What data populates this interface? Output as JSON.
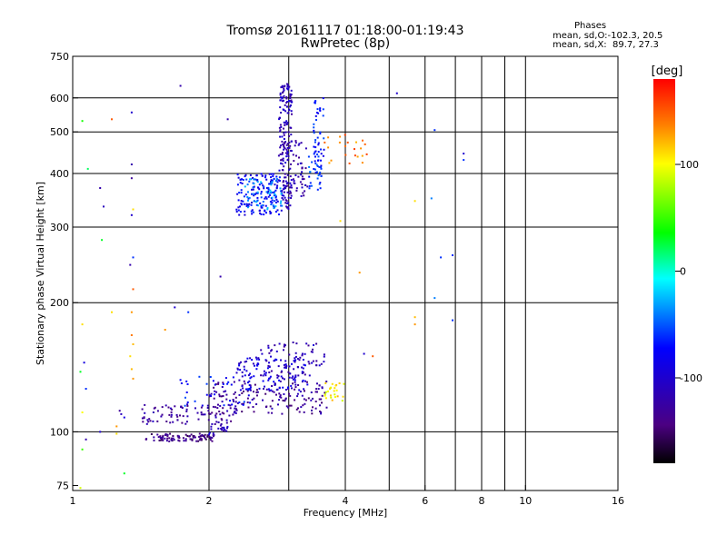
{
  "header": {
    "title_line1": "Tromsø 20161117 01:18:00-01:19:43",
    "title_line2": "RwPretec (8p)"
  },
  "phases": {
    "heading": "Phases",
    "line1": "mean, sd,O:-102.3, 20.5",
    "line2": "mean, sd,X:  89.7, 27.3"
  },
  "chart_data": {
    "type": "scatter",
    "title": "Tromsø 20161117 01:18:00-01:19:43",
    "subtitle": "RwPretec (8p)",
    "xlabel": "Frequency [MHz]",
    "ylabel": "Stationary phase Virtual Height [km]",
    "xscale": "log",
    "yscale": "log",
    "xlim": [
      1,
      16
    ],
    "ylim": [
      73,
      750
    ],
    "x_ticks": [
      "1",
      "2",
      "4",
      "6",
      "8",
      "10",
      "16"
    ],
    "x_gridlines": [
      2,
      3,
      4,
      5,
      6,
      7,
      8,
      9,
      10
    ],
    "y_ticks": [
      "75",
      "100",
      "200",
      "300",
      "400",
      "500",
      "600",
      "750"
    ],
    "y_gridlines": [
      100,
      200,
      300,
      400,
      500,
      600
    ],
    "grid": true,
    "colorbar": {
      "label": "[deg]",
      "ticks": [
        "100",
        "0",
        "-100"
      ],
      "tick_values": [
        100,
        0,
        -100
      ],
      "range": [
        -180,
        180
      ],
      "colors": [
        "#000000",
        "#4b0082",
        "#0000ff",
        "#00ffff",
        "#00ff00",
        "#ffff00",
        "#ff8000",
        "#ff0000"
      ]
    },
    "traces": [
      {
        "kind": "band",
        "x0": 1.45,
        "x1": 2.05,
        "y0": 95,
        "y1": 99,
        "phase": -140,
        "n": 90
      },
      {
        "kind": "band",
        "x0": 2.0,
        "x1": 2.2,
        "y0": 98,
        "y1": 104,
        "phase": -110,
        "n": 18
      },
      {
        "kind": "band",
        "x0": 1.42,
        "x1": 2.3,
        "y0": 104,
        "y1": 116,
        "phase": -125,
        "n": 90
      },
      {
        "kind": "band",
        "x0": 2.0,
        "x1": 3.7,
        "y0": 110,
        "y1": 132,
        "phase": -130,
        "n": 160
      },
      {
        "kind": "band",
        "x0": 2.3,
        "x1": 3.3,
        "y0": 125,
        "y1": 150,
        "phase": -95,
        "n": 110
      },
      {
        "kind": "band",
        "x0": 2.6,
        "x1": 3.6,
        "y0": 135,
        "y1": 162,
        "phase": -115,
        "n": 70
      },
      {
        "kind": "band",
        "x0": 1.7,
        "x1": 2.5,
        "y0": 115,
        "y1": 135,
        "phase": -70,
        "n": 40
      },
      {
        "kind": "band",
        "x0": 3.6,
        "x1": 4.0,
        "y0": 118,
        "y1": 130,
        "phase": 105,
        "n": 25
      },
      {
        "kind": "band",
        "x0": 2.3,
        "x1": 2.9,
        "y0": 320,
        "y1": 400,
        "phase": -80,
        "n": 150
      },
      {
        "kind": "band",
        "x0": 2.4,
        "x1": 2.9,
        "y0": 330,
        "y1": 390,
        "phase": -40,
        "n": 60
      },
      {
        "kind": "band",
        "x0": 2.85,
        "x1": 3.05,
        "y0": 330,
        "y1": 650,
        "phase": -110,
        "n": 170
      },
      {
        "kind": "band",
        "x0": 2.9,
        "x1": 3.3,
        "y0": 350,
        "y1": 480,
        "phase": -120,
        "n": 60
      },
      {
        "kind": "band",
        "x0": 3.4,
        "x1": 3.6,
        "y0": 380,
        "y1": 600,
        "phase": -70,
        "n": 55
      },
      {
        "kind": "band",
        "x0": 3.6,
        "x1": 4.5,
        "y0": 420,
        "y1": 500,
        "phase": 140,
        "n": 22
      },
      {
        "kind": "band",
        "x0": 3.3,
        "x1": 3.55,
        "y0": 360,
        "y1": 440,
        "phase": -60,
        "n": 20
      }
    ],
    "points": [
      {
        "x": 1.05,
        "y": 530,
        "phase": 40
      },
      {
        "x": 1.08,
        "y": 410,
        "phase": 20
      },
      {
        "x": 1.15,
        "y": 370,
        "phase": -120
      },
      {
        "x": 1.17,
        "y": 335,
        "phase": -110
      },
      {
        "x": 1.22,
        "y": 535,
        "phase": 150
      },
      {
        "x": 1.35,
        "y": 555,
        "phase": -100
      },
      {
        "x": 1.35,
        "y": 420,
        "phase": -120
      },
      {
        "x": 1.35,
        "y": 390,
        "phase": -130
      },
      {
        "x": 1.36,
        "y": 330,
        "phase": 110
      },
      {
        "x": 1.35,
        "y": 320,
        "phase": -100
      },
      {
        "x": 1.16,
        "y": 280,
        "phase": 30
      },
      {
        "x": 1.36,
        "y": 255,
        "phase": -60
      },
      {
        "x": 1.34,
        "y": 245,
        "phase": -120
      },
      {
        "x": 1.36,
        "y": 215,
        "phase": 150
      },
      {
        "x": 1.73,
        "y": 640,
        "phase": -120
      },
      {
        "x": 2.2,
        "y": 535,
        "phase": -120
      },
      {
        "x": 2.12,
        "y": 230,
        "phase": -120
      },
      {
        "x": 3.9,
        "y": 310,
        "phase": 110
      },
      {
        "x": 4.3,
        "y": 235,
        "phase": 130
      },
      {
        "x": 5.2,
        "y": 615,
        "phase": -100
      },
      {
        "x": 5.7,
        "y": 345,
        "phase": 110
      },
      {
        "x": 6.3,
        "y": 505,
        "phase": -60
      },
      {
        "x": 6.2,
        "y": 350,
        "phase": -40
      },
      {
        "x": 6.5,
        "y": 255,
        "phase": -60
      },
      {
        "x": 6.9,
        "y": 258,
        "phase": -60
      },
      {
        "x": 6.3,
        "y": 205,
        "phase": -40
      },
      {
        "x": 7.3,
        "y": 445,
        "phase": -100
      },
      {
        "x": 7.3,
        "y": 430,
        "phase": -60
      },
      {
        "x": 6.9,
        "y": 182,
        "phase": -60
      },
      {
        "x": 5.7,
        "y": 185,
        "phase": 120
      },
      {
        "x": 5.7,
        "y": 178,
        "phase": 130
      },
      {
        "x": 4.4,
        "y": 152,
        "phase": -100
      },
      {
        "x": 4.6,
        "y": 150,
        "phase": 150
      },
      {
        "x": 1.05,
        "y": 178,
        "phase": 110
      },
      {
        "x": 1.06,
        "y": 145,
        "phase": -90
      },
      {
        "x": 1.04,
        "y": 138,
        "phase": 30
      },
      {
        "x": 1.07,
        "y": 126,
        "phase": -60
      },
      {
        "x": 1.05,
        "y": 111,
        "phase": 100
      },
      {
        "x": 1.05,
        "y": 91,
        "phase": 50
      },
      {
        "x": 1.04,
        "y": 74,
        "phase": 90
      },
      {
        "x": 1.07,
        "y": 96,
        "phase": -120
      },
      {
        "x": 1.15,
        "y": 100,
        "phase": -100
      },
      {
        "x": 1.25,
        "y": 99,
        "phase": 110
      },
      {
        "x": 1.25,
        "y": 103,
        "phase": 130
      },
      {
        "x": 1.3,
        "y": 80,
        "phase": 30
      },
      {
        "x": 1.35,
        "y": 190,
        "phase": 130
      },
      {
        "x": 1.35,
        "y": 168,
        "phase": 140
      },
      {
        "x": 1.36,
        "y": 160,
        "phase": 120
      },
      {
        "x": 1.34,
        "y": 150,
        "phase": 110
      },
      {
        "x": 1.35,
        "y": 140,
        "phase": 120
      },
      {
        "x": 1.36,
        "y": 133,
        "phase": 130
      },
      {
        "x": 1.22,
        "y": 190,
        "phase": 110
      },
      {
        "x": 1.68,
        "y": 195,
        "phase": -100
      },
      {
        "x": 1.8,
        "y": 190,
        "phase": -60
      },
      {
        "x": 1.6,
        "y": 173,
        "phase": 130
      },
      {
        "x": 1.28,
        "y": 110,
        "phase": -110
      },
      {
        "x": 1.3,
        "y": 108,
        "phase": -90
      },
      {
        "x": 1.27,
        "y": 112,
        "phase": -130
      }
    ]
  }
}
